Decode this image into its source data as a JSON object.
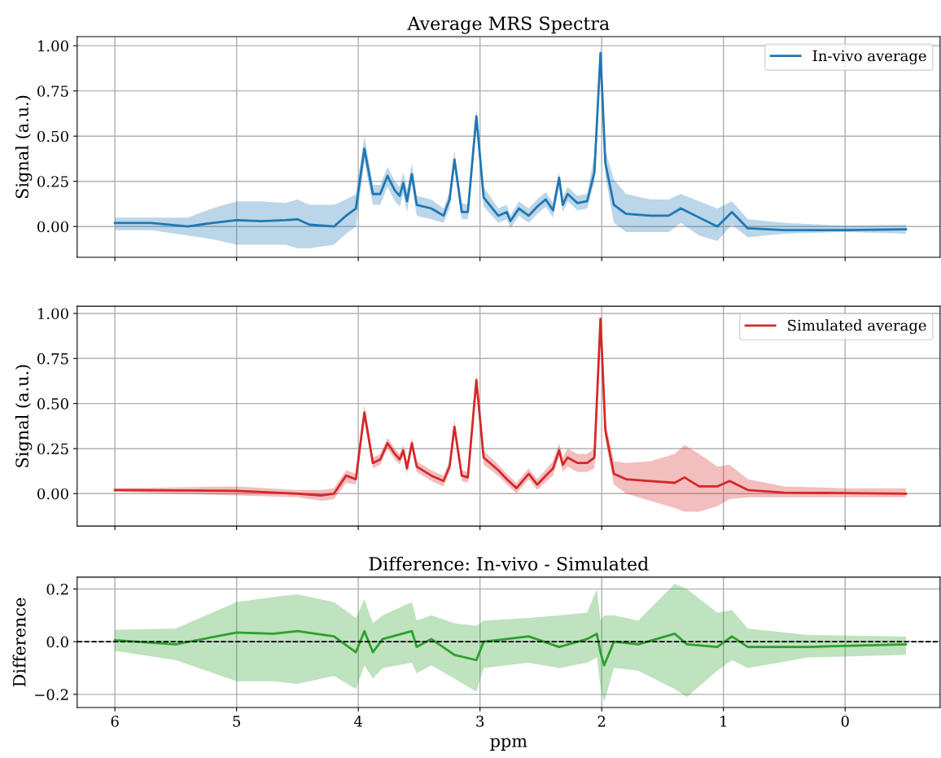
{
  "chart_data": [
    {
      "type": "line",
      "title": "Average MRS Spectra",
      "ylabel": "Signal (a.u.)",
      "xlim": [
        6.31,
        -0.78
      ],
      "xticks": [
        6,
        5,
        4,
        3,
        2,
        1,
        0
      ],
      "ylim": [
        -0.17,
        1.05
      ],
      "yticks": [
        {
          "value": 0,
          "label": "0.00"
        },
        {
          "value": 0.25,
          "label": "0.25"
        },
        {
          "value": 0.5,
          "label": "0.50"
        },
        {
          "value": 0.75,
          "label": "0.75"
        },
        {
          "value": 1,
          "label": "1.00"
        }
      ],
      "grid": true,
      "legend": "top right",
      "tick_labels": "y",
      "line_style": "solid",
      "series": [
        {
          "name": "In-vivo average",
          "color": "#1f77b4",
          "x": [
            6.0,
            5.7,
            5.4,
            5.2,
            5.0,
            4.8,
            4.6,
            4.5,
            4.4,
            4.2,
            4.1,
            4.02,
            3.95,
            3.88,
            3.82,
            3.76,
            3.7,
            3.66,
            3.63,
            3.6,
            3.56,
            3.52,
            3.4,
            3.3,
            3.25,
            3.21,
            3.15,
            3.1,
            3.03,
            2.97,
            2.85,
            2.78,
            2.75,
            2.68,
            2.6,
            2.53,
            2.46,
            2.4,
            2.35,
            2.32,
            2.28,
            2.2,
            2.12,
            2.06,
            2.01,
            1.97,
            1.9,
            1.8,
            1.6,
            1.45,
            1.35,
            1.2,
            1.05,
            0.93,
            0.8,
            0.5,
            0.0,
            -0.5
          ],
          "values": [
            0.02,
            0.02,
            0.0,
            0.02,
            0.035,
            0.03,
            0.035,
            0.04,
            0.01,
            0.0,
            0.06,
            0.1,
            0.43,
            0.18,
            0.18,
            0.28,
            0.2,
            0.17,
            0.24,
            0.14,
            0.29,
            0.12,
            0.1,
            0.06,
            0.15,
            0.37,
            0.08,
            0.08,
            0.61,
            0.16,
            0.06,
            0.08,
            0.03,
            0.1,
            0.06,
            0.11,
            0.15,
            0.09,
            0.27,
            0.12,
            0.18,
            0.13,
            0.14,
            0.3,
            0.96,
            0.35,
            0.12,
            0.07,
            0.06,
            0.06,
            0.1,
            0.05,
            0.0,
            0.08,
            -0.01,
            -0.02,
            -0.02,
            -0.015
          ],
          "lower": [
            -0.02,
            -0.02,
            -0.05,
            -0.07,
            -0.1,
            -0.1,
            -0.1,
            -0.12,
            -0.12,
            -0.1,
            -0.04,
            0.0,
            0.36,
            0.12,
            0.12,
            0.22,
            0.14,
            0.11,
            0.18,
            0.08,
            0.24,
            0.06,
            0.04,
            0.02,
            0.1,
            0.33,
            0.04,
            0.04,
            0.57,
            0.11,
            0.02,
            0.04,
            -0.01,
            0.06,
            0.02,
            0.07,
            0.11,
            0.05,
            0.22,
            0.08,
            0.14,
            0.09,
            0.1,
            0.25,
            0.93,
            0.28,
            0.02,
            -0.03,
            -0.03,
            -0.03,
            0.02,
            -0.05,
            -0.08,
            0.01,
            -0.06,
            -0.04,
            -0.03,
            -0.04
          ],
          "upper": [
            0.05,
            0.05,
            0.05,
            0.1,
            0.14,
            0.14,
            0.13,
            0.15,
            0.12,
            0.12,
            0.15,
            0.18,
            0.5,
            0.23,
            0.23,
            0.33,
            0.25,
            0.22,
            0.3,
            0.2,
            0.35,
            0.17,
            0.15,
            0.1,
            0.19,
            0.42,
            0.13,
            0.12,
            0.65,
            0.22,
            0.1,
            0.12,
            0.06,
            0.14,
            0.1,
            0.15,
            0.19,
            0.13,
            0.3,
            0.16,
            0.22,
            0.17,
            0.18,
            0.4,
            1.0,
            0.42,
            0.26,
            0.18,
            0.15,
            0.15,
            0.18,
            0.14,
            0.1,
            0.14,
            0.04,
            0.02,
            0.005,
            0.01
          ]
        }
      ]
    },
    {
      "type": "line",
      "ylabel": "Signal (a.u.)",
      "xlim": [
        6.31,
        -0.78
      ],
      "xticks": [
        6,
        5,
        4,
        3,
        2,
        1,
        0
      ],
      "ylim": [
        -0.18,
        1.04
      ],
      "yticks": [
        {
          "value": 0,
          "label": "0.00"
        },
        {
          "value": 0.25,
          "label": "0.25"
        },
        {
          "value": 0.5,
          "label": "0.50"
        },
        {
          "value": 0.75,
          "label": "0.75"
        },
        {
          "value": 1,
          "label": "1.00"
        }
      ],
      "grid": true,
      "legend": "top right",
      "tick_labels": "y",
      "line_style": "solid",
      "series": [
        {
          "name": "Simulated average",
          "color": "#d62728",
          "x": [
            6.0,
            5.0,
            4.5,
            4.3,
            4.2,
            4.1,
            4.02,
            3.95,
            3.88,
            3.82,
            3.76,
            3.7,
            3.66,
            3.63,
            3.6,
            3.56,
            3.52,
            3.4,
            3.3,
            3.25,
            3.21,
            3.15,
            3.1,
            3.03,
            2.97,
            2.85,
            2.78,
            2.7,
            2.6,
            2.53,
            2.4,
            2.35,
            2.32,
            2.28,
            2.2,
            2.12,
            2.06,
            2.01,
            1.97,
            1.9,
            1.8,
            1.6,
            1.4,
            1.32,
            1.2,
            1.05,
            0.95,
            0.8,
            0.5,
            0.0,
            -0.5
          ],
          "values": [
            0.02,
            0.015,
            0.0,
            -0.01,
            0.0,
            0.1,
            0.08,
            0.45,
            0.17,
            0.19,
            0.28,
            0.22,
            0.19,
            0.24,
            0.14,
            0.28,
            0.15,
            0.1,
            0.07,
            0.15,
            0.37,
            0.1,
            0.09,
            0.63,
            0.2,
            0.13,
            0.08,
            0.03,
            0.11,
            0.05,
            0.14,
            0.24,
            0.16,
            0.2,
            0.17,
            0.17,
            0.2,
            0.97,
            0.35,
            0.11,
            0.08,
            0.07,
            0.06,
            0.09,
            0.04,
            0.04,
            0.07,
            0.02,
            0.005,
            0.003,
            0.0
          ],
          "lower": [
            0.01,
            -0.01,
            -0.02,
            -0.04,
            -0.03,
            0.06,
            0.05,
            0.41,
            0.14,
            0.16,
            0.25,
            0.19,
            0.16,
            0.21,
            0.11,
            0.25,
            0.12,
            0.07,
            0.04,
            0.12,
            0.34,
            0.07,
            0.06,
            0.6,
            0.16,
            0.1,
            0.05,
            0.0,
            0.08,
            0.02,
            0.1,
            0.21,
            0.12,
            0.15,
            0.12,
            0.12,
            0.14,
            0.95,
            0.3,
            0.05,
            0.0,
            -0.04,
            -0.08,
            -0.1,
            -0.1,
            -0.07,
            -0.03,
            -0.02,
            -0.02,
            -0.02,
            -0.02
          ],
          "upper": [
            0.03,
            0.04,
            0.02,
            0.02,
            0.03,
            0.13,
            0.11,
            0.49,
            0.2,
            0.22,
            0.31,
            0.25,
            0.22,
            0.27,
            0.17,
            0.31,
            0.18,
            0.13,
            0.1,
            0.18,
            0.41,
            0.13,
            0.12,
            0.67,
            0.24,
            0.16,
            0.11,
            0.06,
            0.14,
            0.08,
            0.18,
            0.28,
            0.2,
            0.25,
            0.22,
            0.22,
            0.25,
            0.99,
            0.4,
            0.18,
            0.17,
            0.18,
            0.22,
            0.27,
            0.22,
            0.15,
            0.16,
            0.08,
            0.04,
            0.03,
            0.03
          ]
        }
      ]
    },
    {
      "type": "line",
      "title": "Difference: In-vivo - Simulated",
      "xlabel": "ppm",
      "ylabel": "Difference",
      "xlim": [
        6.31,
        -0.78
      ],
      "xticks": [
        6,
        5,
        4,
        3,
        2,
        1,
        0
      ],
      "ylim": [
        -0.25,
        0.245
      ],
      "yticks": [
        {
          "value": -0.2,
          "label": "−0.2"
        },
        {
          "value": 0,
          "label": "0.0"
        },
        {
          "value": 0.2,
          "label": "0.2"
        }
      ],
      "grid": true,
      "line_style": "solid",
      "ref_lines": [
        {
          "axis": "y",
          "value": 0,
          "color": "#000000",
          "line_style": "dashed"
        }
      ],
      "series": [
        {
          "color": "#2ca02c",
          "x": [
            6.0,
            5.5,
            5.0,
            4.7,
            4.5,
            4.2,
            4.02,
            3.95,
            3.88,
            3.8,
            3.56,
            3.52,
            3.4,
            3.21,
            3.03,
            2.97,
            2.6,
            2.35,
            2.12,
            2.04,
            2.01,
            1.98,
            1.9,
            1.7,
            1.4,
            1.3,
            1.05,
            0.93,
            0.8,
            0.3,
            -0.5
          ],
          "values": [
            0.005,
            -0.01,
            0.035,
            0.03,
            0.04,
            0.02,
            -0.04,
            0.04,
            -0.04,
            0.01,
            0.04,
            -0.02,
            0.01,
            -0.05,
            -0.07,
            0.0,
            0.02,
            -0.02,
            0.01,
            0.03,
            -0.04,
            -0.09,
            0.0,
            -0.01,
            0.03,
            -0.01,
            -0.02,
            0.02,
            -0.02,
            -0.02,
            -0.01
          ],
          "lower": [
            -0.035,
            -0.07,
            -0.15,
            -0.15,
            -0.16,
            -0.13,
            -0.18,
            -0.09,
            -0.14,
            -0.1,
            -0.08,
            -0.12,
            -0.09,
            -0.14,
            -0.19,
            -0.1,
            -0.08,
            -0.1,
            -0.08,
            -0.06,
            -0.17,
            -0.23,
            -0.1,
            -0.11,
            -0.18,
            -0.21,
            -0.11,
            -0.07,
            -0.1,
            -0.06,
            -0.05
          ],
          "upper": [
            0.045,
            0.05,
            0.15,
            0.17,
            0.18,
            0.15,
            0.09,
            0.16,
            0.07,
            0.1,
            0.15,
            0.08,
            0.1,
            0.07,
            0.06,
            0.08,
            0.09,
            0.1,
            0.11,
            0.2,
            0.08,
            0.1,
            0.1,
            0.08,
            0.22,
            0.2,
            0.11,
            0.12,
            0.05,
            0.025,
            0.02
          ]
        }
      ]
    }
  ]
}
